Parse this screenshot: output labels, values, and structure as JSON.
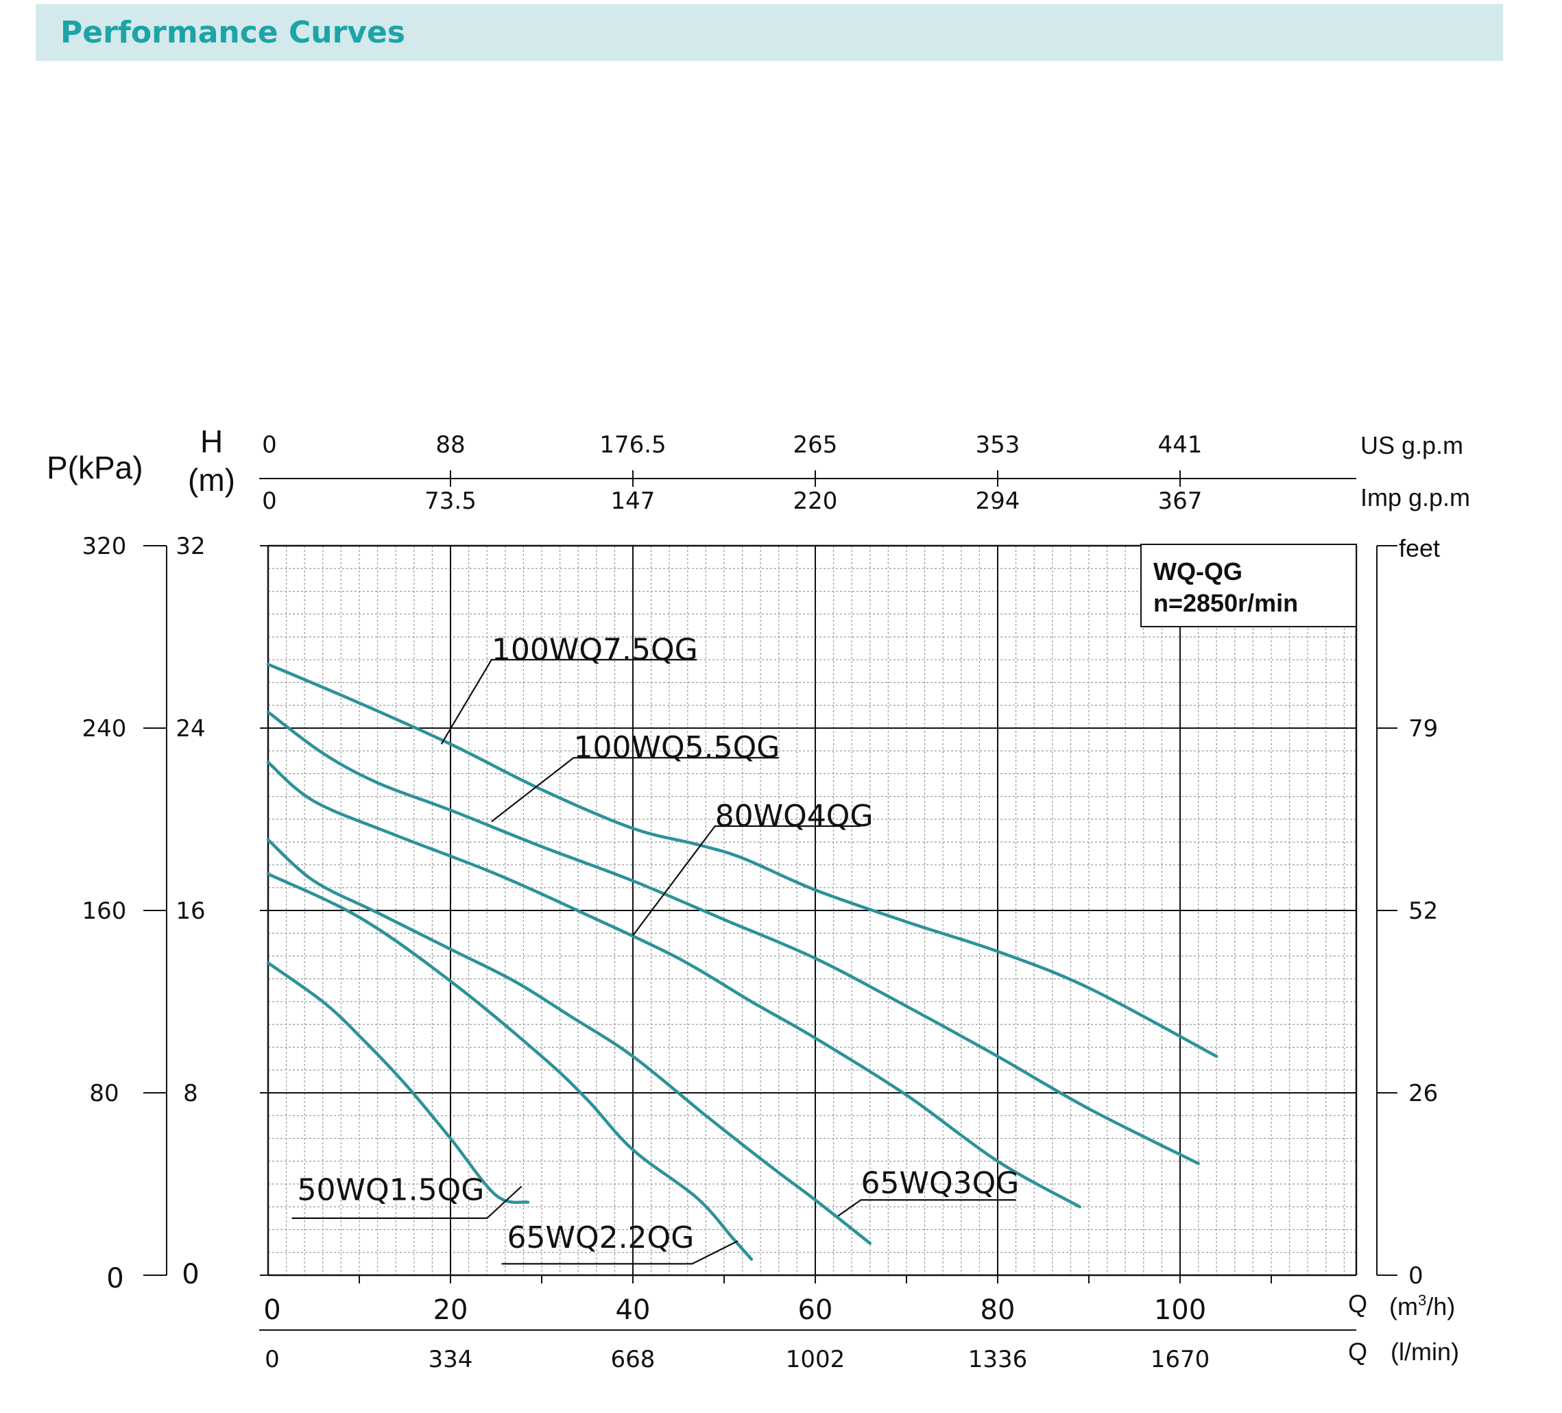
{
  "header": {
    "title": "Performance Curves"
  },
  "legend_box": {
    "model": "WQ-QG",
    "speed": "n=2850r/min"
  },
  "axes": {
    "pressure_label": "P(kPa)",
    "head_label_h": "H",
    "head_label_unit": "(m)",
    "feet_label": "feet",
    "usgpm_label": "US g.p.m",
    "impgpm_label": "Imp g.p.m",
    "q_label": "Q",
    "q_m3h_unit_pre": "(m",
    "q_m3h_unit_sup": "3",
    "q_m3h_unit_post": "/h)",
    "q_lmin_unit": "(l/min)",
    "q_m3h_ticks": [
      {
        "value": 0,
        "label": "0"
      },
      {
        "value": 20,
        "label": "20"
      },
      {
        "value": 40,
        "label": "40"
      },
      {
        "value": 60,
        "label": "60"
      },
      {
        "value": 80,
        "label": "80"
      },
      {
        "value": 100,
        "label": "100"
      }
    ],
    "q_lmin_ticks": [
      {
        "value": 0,
        "label": "0"
      },
      {
        "value": 20,
        "label": "334"
      },
      {
        "value": 40,
        "label": "668"
      },
      {
        "value": 60,
        "label": "1002"
      },
      {
        "value": 80,
        "label": "1336"
      },
      {
        "value": 100,
        "label": "1670"
      }
    ],
    "usgpm_ticks": [
      {
        "value": 0,
        "label": "0"
      },
      {
        "value": 20,
        "label": "88"
      },
      {
        "value": 40,
        "label": "176.5"
      },
      {
        "value": 60,
        "label": "265"
      },
      {
        "value": 80,
        "label": "353"
      },
      {
        "value": 100,
        "label": "441"
      }
    ],
    "impgpm_ticks": [
      {
        "value": 0,
        "label": "0"
      },
      {
        "value": 20,
        "label": "73.5"
      },
      {
        "value": 40,
        "label": "147"
      },
      {
        "value": 60,
        "label": "220"
      },
      {
        "value": 80,
        "label": "294"
      },
      {
        "value": 100,
        "label": "367"
      }
    ],
    "head_ticks": [
      {
        "value": 0,
        "label": "0"
      },
      {
        "value": 8,
        "label": "8"
      },
      {
        "value": 16,
        "label": "16"
      },
      {
        "value": 24,
        "label": "24"
      },
      {
        "value": 32,
        "label": "32"
      }
    ],
    "pressure_ticks": [
      {
        "value": 0,
        "label": "0"
      },
      {
        "value": 8,
        "label": "80"
      },
      {
        "value": 16,
        "label": "160"
      },
      {
        "value": 24,
        "label": "240"
      },
      {
        "value": 32,
        "label": "320"
      }
    ],
    "feet_ticks": [
      {
        "value": 0,
        "label": "0"
      },
      {
        "value": 8,
        "label": "26"
      },
      {
        "value": 16,
        "label": "52"
      },
      {
        "value": 24,
        "label": "79"
      }
    ]
  },
  "colors": {
    "curve": "#2c9299",
    "grid_major": "#111111",
    "grid_minor": "#9a9a9a",
    "banner": "#d3e9ec",
    "title": "#1ca4a6"
  },
  "chart_data": {
    "type": "line",
    "xlabel": "Q (m3/h)",
    "ylabel": "H (m)",
    "xlim": [
      0,
      119
    ],
    "ylim": [
      0,
      32
    ],
    "grid": true,
    "series": [
      {
        "name": "100WQ7.5QG",
        "x": [
          0,
          10,
          20,
          30,
          40,
          47,
          52,
          60,
          70,
          80,
          90,
          104
        ],
        "y": [
          26.8,
          25.1,
          23.3,
          21.3,
          19.6,
          18.9,
          18.3,
          16.9,
          15.5,
          14.2,
          12.6,
          9.6
        ],
        "label_anchor": [
          19,
          23.3
        ],
        "label_at": [
          24.5,
          27
        ],
        "label_line_end": [
          47,
          27
        ]
      },
      {
        "name": "100WQ5.5QG",
        "x": [
          0,
          6,
          12,
          20,
          30,
          40,
          50,
          60,
          70,
          80,
          90,
          102
        ],
        "y": [
          24.7,
          22.9,
          21.6,
          20.4,
          18.8,
          17.3,
          15.6,
          13.9,
          11.8,
          9.6,
          7.3,
          4.9
        ],
        "label_anchor": [
          24.5,
          19.9
        ],
        "label_at": [
          33.5,
          22.7
        ],
        "label_line_end": [
          56,
          22.7
        ]
      },
      {
        "name": "80WQ4QG",
        "x": [
          0,
          5,
          14,
          25,
          35,
          45,
          53,
          60,
          70,
          80,
          89
        ],
        "y": [
          22.5,
          20.8,
          19.3,
          17.6,
          15.8,
          13.9,
          12.0,
          10.4,
          7.9,
          5.0,
          3.0
        ],
        "label_anchor": [
          40,
          14.9
        ],
        "label_at": [
          49,
          19.7
        ],
        "label_line_end": [
          65,
          19.7
        ]
      },
      {
        "name": "65WQ3QG",
        "x": [
          0,
          5,
          12,
          20,
          27,
          33,
          40,
          48,
          55,
          60,
          66
        ],
        "y": [
          19.1,
          17.3,
          15.9,
          14.3,
          12.9,
          11.4,
          9.6,
          7.0,
          4.8,
          3.3,
          1.4
        ],
        "label_anchor": [
          62.5,
          2.6
        ],
        "label_at": [
          65,
          3.6
        ],
        "label_line_end": [
          82,
          3.3
        ]
      },
      {
        "name": "65WQ2.2QG",
        "x": [
          0,
          10,
          20,
          30,
          35,
          40,
          47,
          51,
          53
        ],
        "y": [
          17.6,
          15.7,
          12.9,
          9.6,
          7.7,
          5.5,
          3.4,
          1.6,
          0.7
        ],
        "label_anchor": [
          51.5,
          1.5
        ],
        "label_at": [
          26.2,
          1.2
        ],
        "label_line_end": [
          46.5,
          0.5
        ]
      },
      {
        "name": "50WQ1.5QG",
        "x": [
          0,
          6,
          10,
          15,
          20,
          25,
          28.5
        ],
        "y": [
          13.7,
          12.0,
          10.5,
          8.4,
          6.0,
          3.5,
          3.2
        ],
        "label_anchor": [
          27.8,
          3.9
        ],
        "label_at": [
          3.2,
          3.3
        ],
        "label_line_end": [
          24,
          2.5
        ]
      }
    ]
  }
}
